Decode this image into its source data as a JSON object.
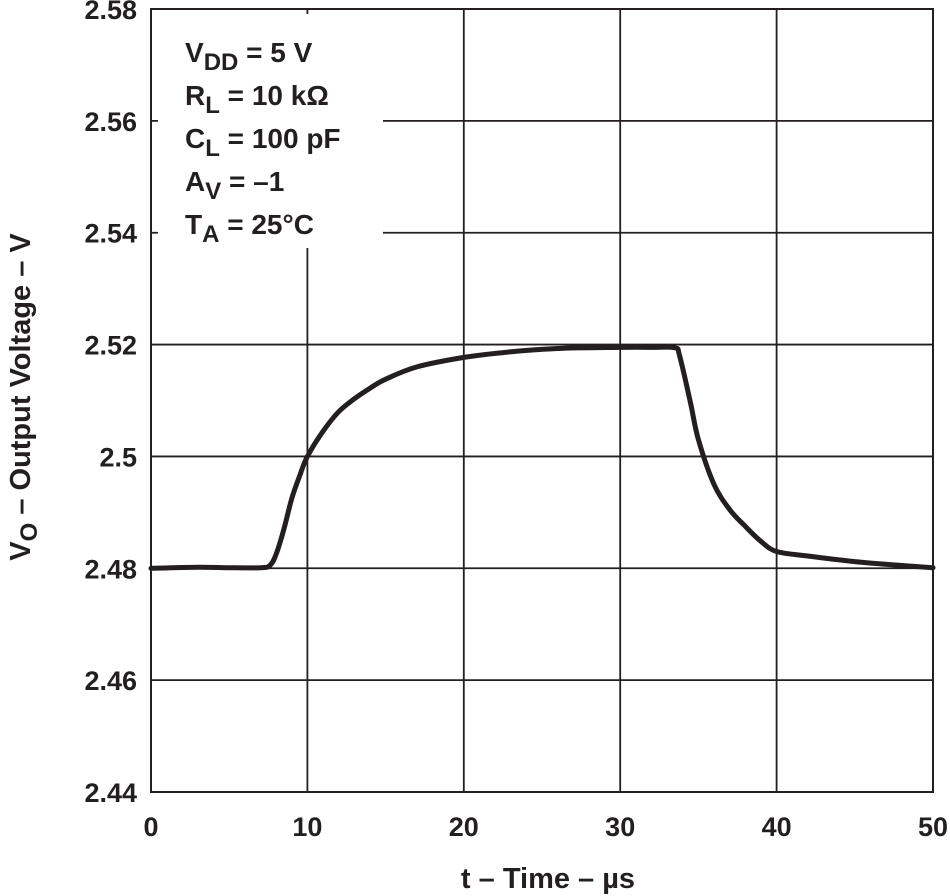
{
  "chart_data": {
    "type": "line",
    "title": "",
    "xlabel": "t – Time – µs",
    "ylabel": "V",
    "ylabel_subscript": "O",
    "ylabel_suffix": " – Output Voltage – V",
    "xlim": [
      0,
      50
    ],
    "ylim": [
      2.44,
      2.58
    ],
    "xticks": [
      0,
      10,
      20,
      30,
      40,
      50
    ],
    "yticks": [
      2.44,
      2.46,
      2.48,
      2.5,
      2.52,
      2.54,
      2.56,
      2.58
    ],
    "xtick_labels": [
      "0",
      "10",
      "20",
      "30",
      "40",
      "50"
    ],
    "ytick_labels": [
      "2.44",
      "2.46",
      "2.48",
      "2.5",
      "2.52",
      "2.54",
      "2.56",
      "2.58"
    ],
    "grid": true,
    "line_color": "#231f20",
    "grid_color": "#231f20",
    "series": [
      {
        "name": "Output Voltage",
        "x": [
          0,
          3,
          5,
          7,
          7.6,
          8,
          8.5,
          9,
          9.5,
          10,
          11,
          12,
          13,
          14,
          15,
          17,
          20,
          23,
          26,
          30,
          32,
          33.5,
          33.8,
          34.5,
          35,
          36,
          37,
          38,
          39,
          40,
          42,
          45,
          48,
          50
        ],
        "y": [
          2.48,
          2.4802,
          2.4801,
          2.4801,
          2.4805,
          2.4825,
          2.487,
          2.4925,
          2.4965,
          2.5,
          2.5045,
          2.508,
          2.5103,
          2.5122,
          2.5138,
          2.516,
          2.5177,
          2.5187,
          2.5193,
          2.5195,
          2.5195,
          2.5194,
          2.518,
          2.5095,
          2.503,
          2.495,
          2.4905,
          2.4875,
          2.4848,
          2.483,
          2.4822,
          2.4812,
          2.4805,
          2.4801
        ]
      }
    ],
    "annotations": [
      {
        "main": "V",
        "sub": "DD",
        "rest": " = 5 V"
      },
      {
        "main": "R",
        "sub": "L",
        "rest": " = 10 kΩ"
      },
      {
        "main": "C",
        "sub": "L",
        "rest": " = 100 pF"
      },
      {
        "main": "A",
        "sub": "V",
        "rest": " = –1"
      },
      {
        "main": "T",
        "sub": "A",
        "rest": " = 25°C"
      }
    ]
  }
}
